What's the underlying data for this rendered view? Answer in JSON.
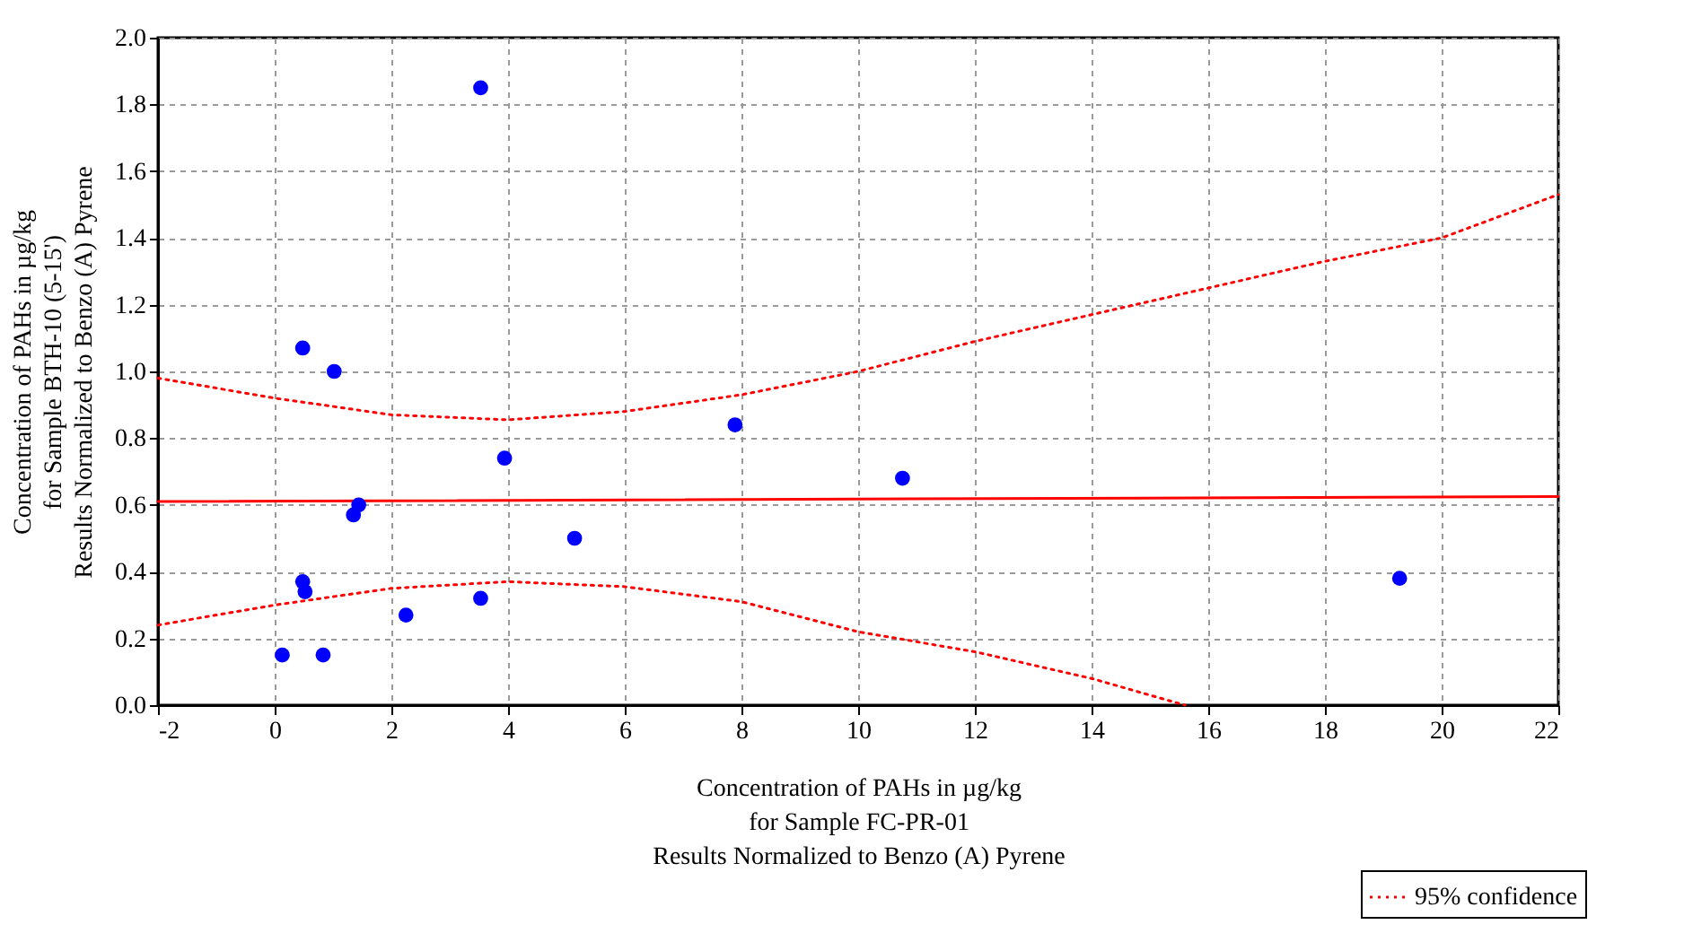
{
  "chart_data": {
    "type": "scatter",
    "xlabel": "Concentration of PAHs in µg/kg\nfor Sample FC-PR-01\nResults Normalized to Benzo (A) Pyrene",
    "ylabel": "Concentration of PAHs in µg/kg\nfor Sample BTH-10 (5-15')\nResults Normalized to Benzo (A) Pyrene",
    "xlim": [
      -2,
      22
    ],
    "xticks": [
      -2,
      0,
      2,
      4,
      6,
      8,
      10,
      12,
      14,
      16,
      18,
      20,
      22
    ],
    "ylim": [
      0,
      2.0
    ],
    "yticks": [
      {
        "value": 0,
        "label": "0.0"
      },
      {
        "value": 0.2,
        "label": "0.2"
      },
      {
        "value": 0.4,
        "label": "0.4"
      },
      {
        "value": 0.6,
        "label": "0.6"
      },
      {
        "value": 0.8,
        "label": "0.8"
      },
      {
        "value": 1.0,
        "label": "1.0"
      },
      {
        "value": 1.2,
        "label": "1.2"
      },
      {
        "value": 1.4,
        "label": "1.4"
      },
      {
        "value": 1.6,
        "label": "1.6"
      },
      {
        "value": 1.8,
        "label": "1.8"
      },
      {
        "value": 2.0,
        "label": "2.0"
      }
    ],
    "grid": true,
    "legend": "bottom right",
    "series": [
      {
        "type": "scatter",
        "color": "#0000ff",
        "marker": "circle",
        "x": [
          0.13,
          0.83,
          0.48,
          1.02,
          0.48,
          0.52,
          1.35,
          1.44,
          2.25,
          3.53,
          3.53,
          3.94,
          5.14,
          7.89,
          10.76,
          19.28
        ],
        "values": [
          0.15,
          0.15,
          1.07,
          1.0,
          0.37,
          0.34,
          0.57,
          0.6,
          0.27,
          1.85,
          0.32,
          0.74,
          0.5,
          0.84,
          0.68,
          0.38
        ]
      },
      {
        "type": "line",
        "color": "#ff0000",
        "line_style": "solid",
        "x": [
          -2,
          22
        ],
        "values": [
          0.61,
          0.625
        ]
      },
      {
        "type": "line",
        "name": "95% confidence",
        "color": "#ff0000",
        "line_style": "dotted",
        "x": [
          -2,
          0,
          2,
          4,
          6,
          8,
          10,
          12,
          14,
          16,
          18,
          20,
          22
        ],
        "values": [
          0.98,
          0.92,
          0.87,
          0.855,
          0.88,
          0.93,
          1.0,
          1.09,
          1.17,
          1.25,
          1.33,
          1.4,
          1.53
        ]
      },
      {
        "type": "line",
        "color": "#ff0000",
        "line_style": "dotted",
        "x": [
          -2,
          0,
          2,
          4,
          6,
          8,
          10,
          12,
          14,
          15.6
        ],
        "values": [
          0.24,
          0.3,
          0.35,
          0.37,
          0.355,
          0.31,
          0.22,
          0.16,
          0.08,
          0.0
        ]
      }
    ]
  }
}
